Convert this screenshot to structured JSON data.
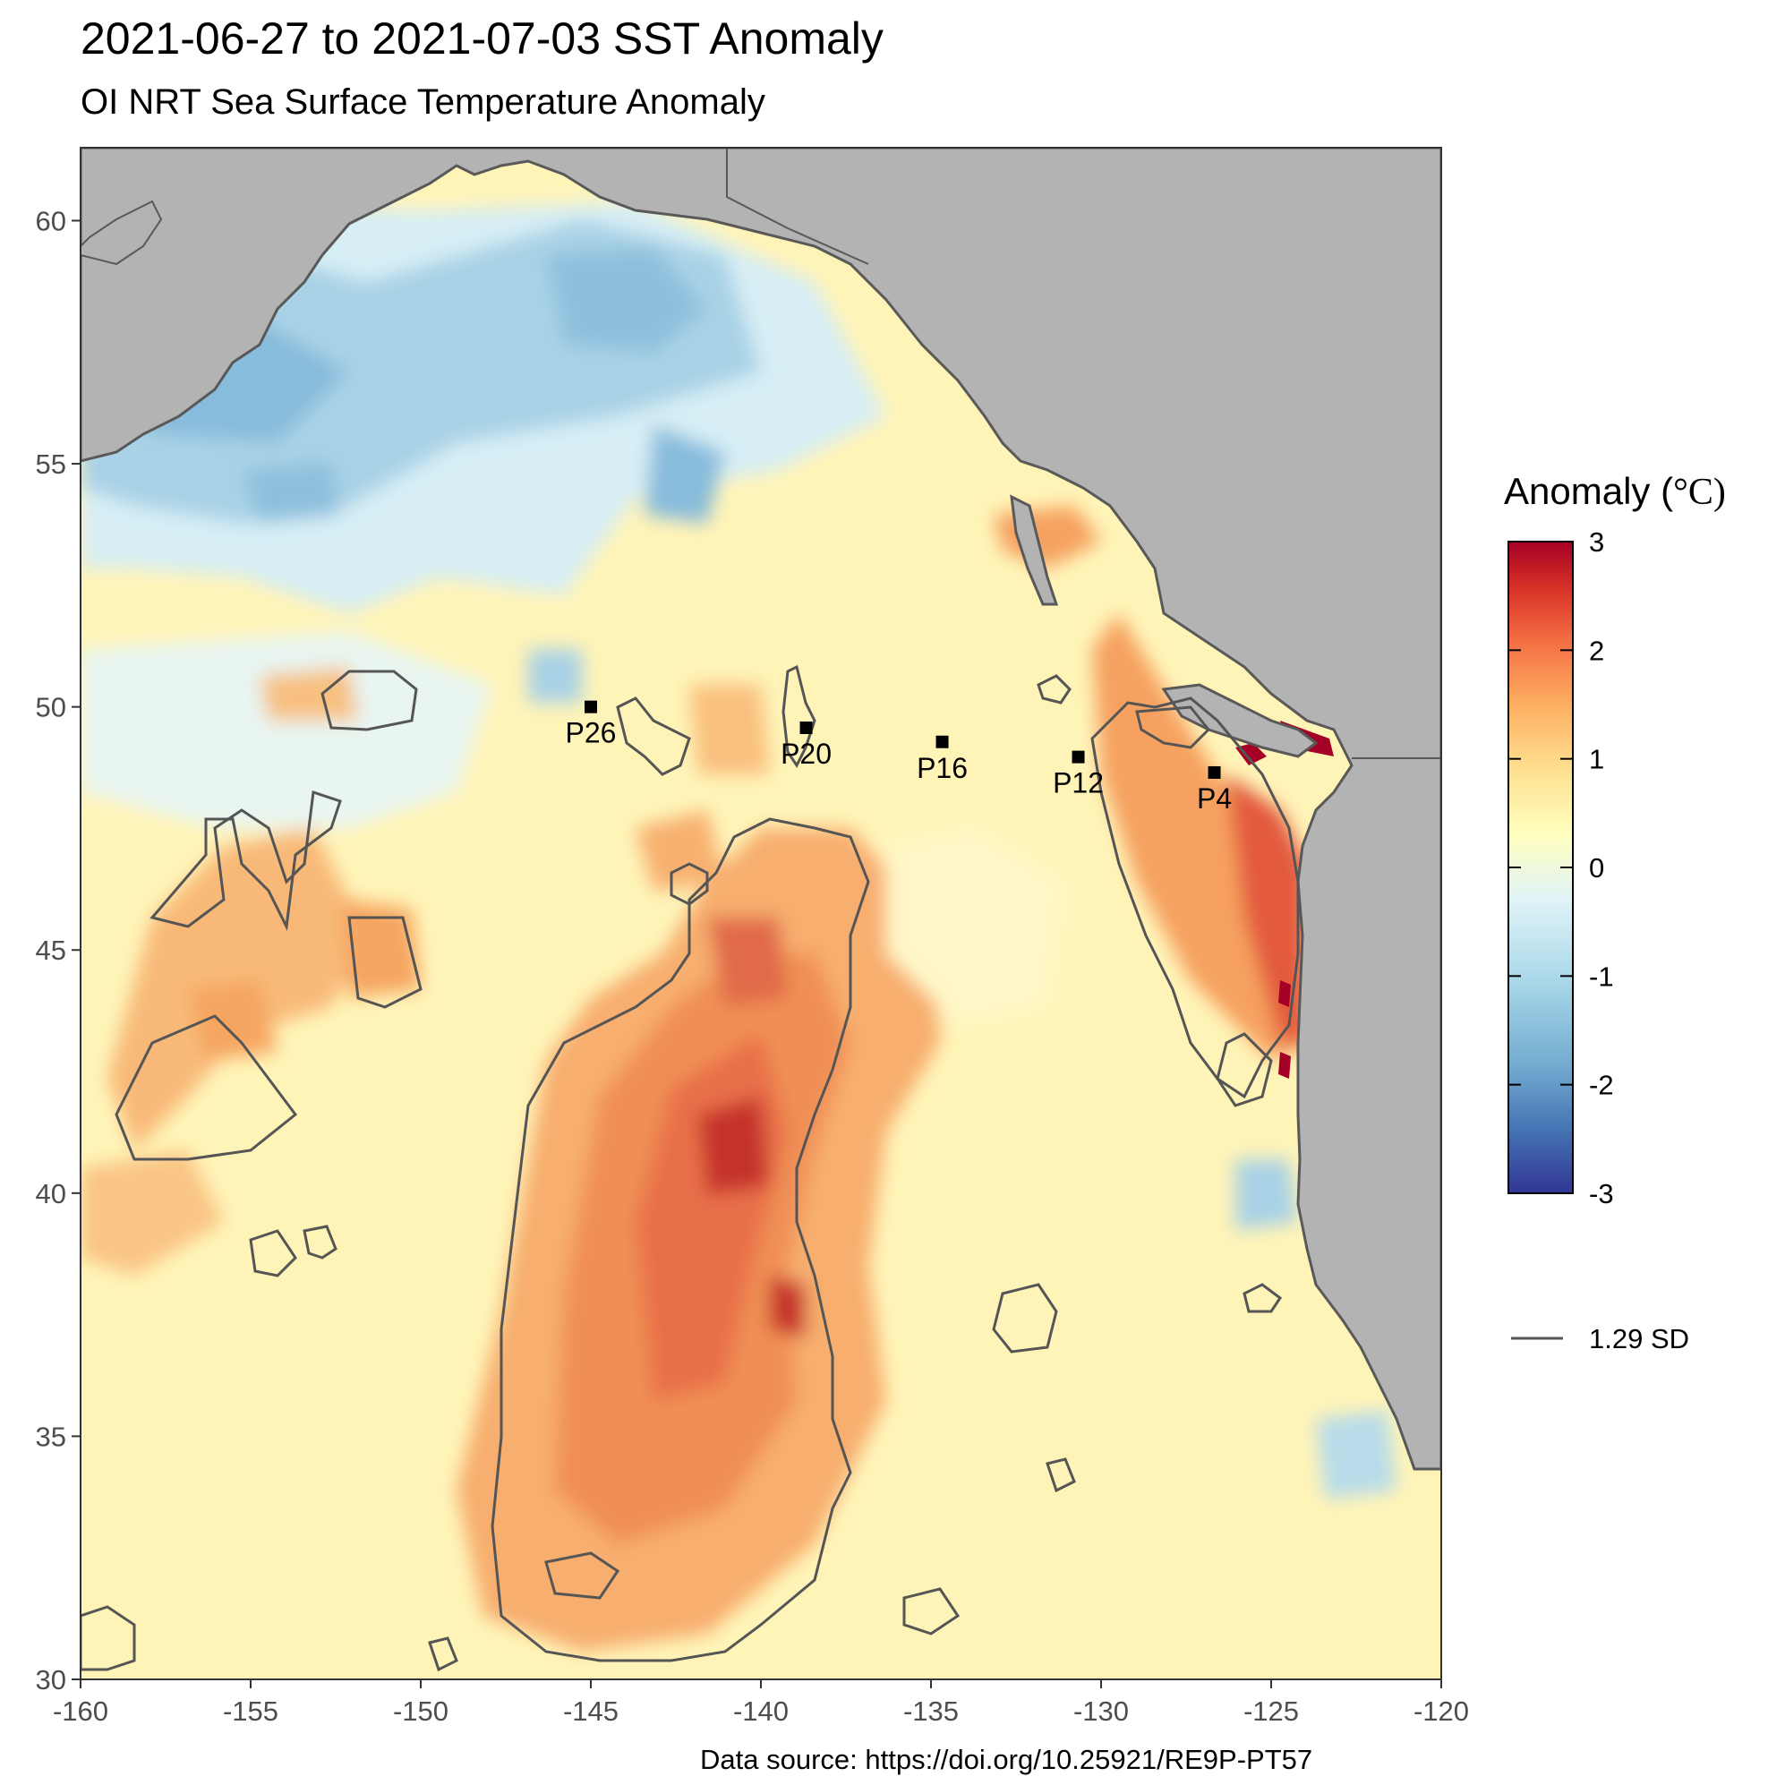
{
  "title": "2021-06-27 to 2021-07-03 SST Anomaly",
  "subtitle": "OI NRT Sea Surface Temperature Anomaly",
  "map": {
    "lon_range": [
      -160,
      -120
    ],
    "lat_range": [
      30,
      61.5
    ],
    "x_ticks": [
      "-160",
      "-155",
      "-150",
      "-145",
      "-140",
      "-135",
      "-130",
      "-125",
      "-120"
    ],
    "y_ticks": [
      "30",
      "35",
      "40",
      "45",
      "50",
      "55",
      "60"
    ],
    "land_color": "#b3b3b3",
    "coast_color": "#595959",
    "contour_color": "#555555"
  },
  "stations": [
    {
      "name": "P26",
      "lon": -145.0,
      "lat": 50.0
    },
    {
      "name": "P20",
      "lon": -138.67,
      "lat": 49.57
    },
    {
      "name": "P16",
      "lon": -134.67,
      "lat": 49.28
    },
    {
      "name": "P12",
      "lon": -130.67,
      "lat": 48.97
    },
    {
      "name": "P4",
      "lon": -126.67,
      "lat": 48.65
    }
  ],
  "legend": {
    "title": "Anomaly (",
    "unit": "°C)",
    "ticks": [
      "3",
      "2",
      "1",
      "0",
      "-1",
      "-2",
      "-3"
    ],
    "range": [
      -3,
      3
    ],
    "colors": [
      "#313695",
      "#4575b4",
      "#74add1",
      "#abd9e9",
      "#e0f3f8",
      "#ffffbf",
      "#fee090",
      "#fdae61",
      "#f46d43",
      "#d73027",
      "#a50026"
    ]
  },
  "contour_legend": {
    "label": "1.29 SD"
  },
  "source": "Data source: https://doi.org/10.25921/RE9P-PT57"
}
